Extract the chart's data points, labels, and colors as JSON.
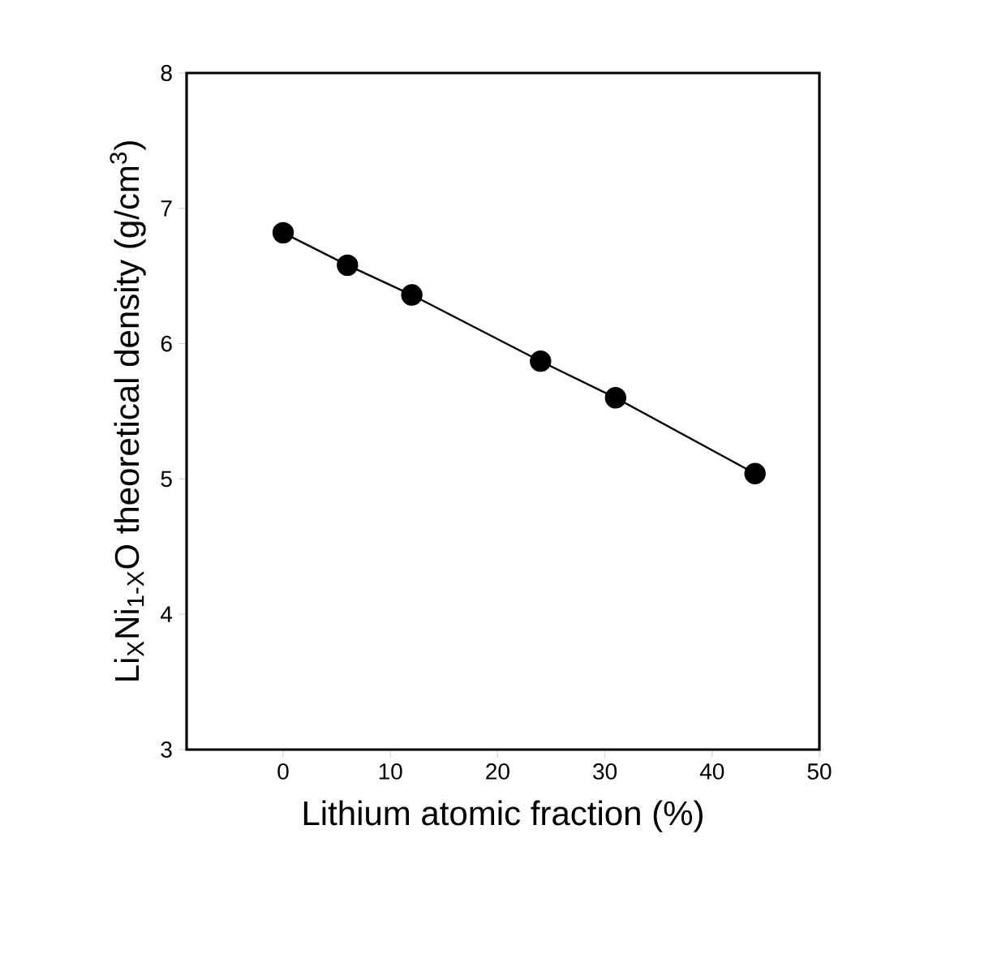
{
  "chart_data": {
    "type": "line",
    "xlabel": "Lithium atomic fraction (%)",
    "ylabel": "Li$_{X}$Ni$_{1-X}$O theoretical density (g/cm$^{3}$)",
    "x": [
      0,
      6,
      12,
      24,
      31,
      44
    ],
    "series": [
      {
        "color": "#000000",
        "values": [
          6.82,
          6.58,
          6.36,
          5.87,
          5.6,
          5.04
        ]
      }
    ],
    "xlim": [
      -9,
      50
    ],
    "xticks": [
      0,
      10,
      20,
      30,
      40,
      50
    ],
    "ylim": [
      3,
      8
    ],
    "yticks": [
      3,
      4,
      5,
      6,
      7,
      8
    ],
    "marker": "circle",
    "line_style": "solid"
  }
}
